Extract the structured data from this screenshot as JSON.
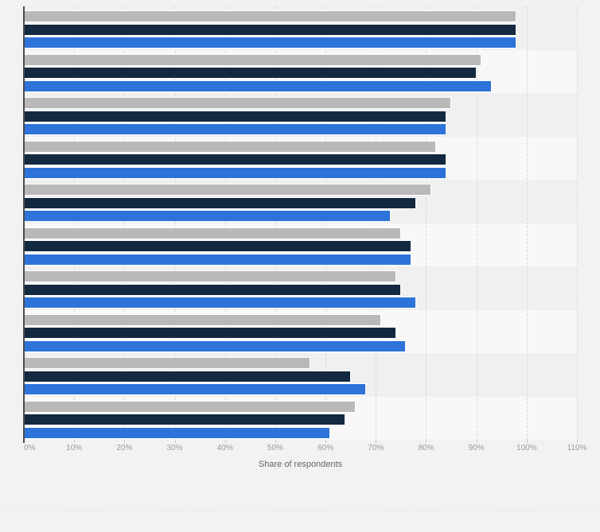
{
  "page": {
    "background": "#f2f2f3"
  },
  "chart_data": {
    "type": "bar",
    "orientation": "horizontal",
    "title": "",
    "xlabel": "Share of respondents",
    "ylabel": "",
    "xlim": [
      0,
      110
    ],
    "grid": "dashed-vertical-per-10pct",
    "legend_position": "not-visible",
    "categories": [
      "",
      "",
      "",
      "",
      "",
      "",
      "",
      "",
      "",
      ""
    ],
    "series": [
      {
        "name": "series-gray",
        "color": "#b9b9ba",
        "values": [
          98,
          91,
          85,
          82,
          81,
          75,
          74,
          71,
          57,
          66
        ]
      },
      {
        "name": "series-dark-navy",
        "color": "#13293f",
        "values": [
          98,
          90,
          84,
          84,
          78,
          77,
          75,
          74,
          65,
          64
        ]
      },
      {
        "name": "series-blue",
        "color": "#2d73d9",
        "values": [
          98,
          93,
          84,
          84,
          73,
          77,
          78,
          76,
          68,
          61
        ]
      }
    ],
    "x_ticks": [
      "0%",
      "10%",
      "20%",
      "30%",
      "40%",
      "50%",
      "60%",
      "70%",
      "80%",
      "90%",
      "100%",
      "110%"
    ],
    "band_colors": [
      "#f0f0f1",
      "#f8f8f9"
    ],
    "axis_line_color": "#4c4c50",
    "gridline_color": "#d9d9db",
    "tick_label_color": "#9a9a9e",
    "xlabel_color": "#66666b"
  }
}
